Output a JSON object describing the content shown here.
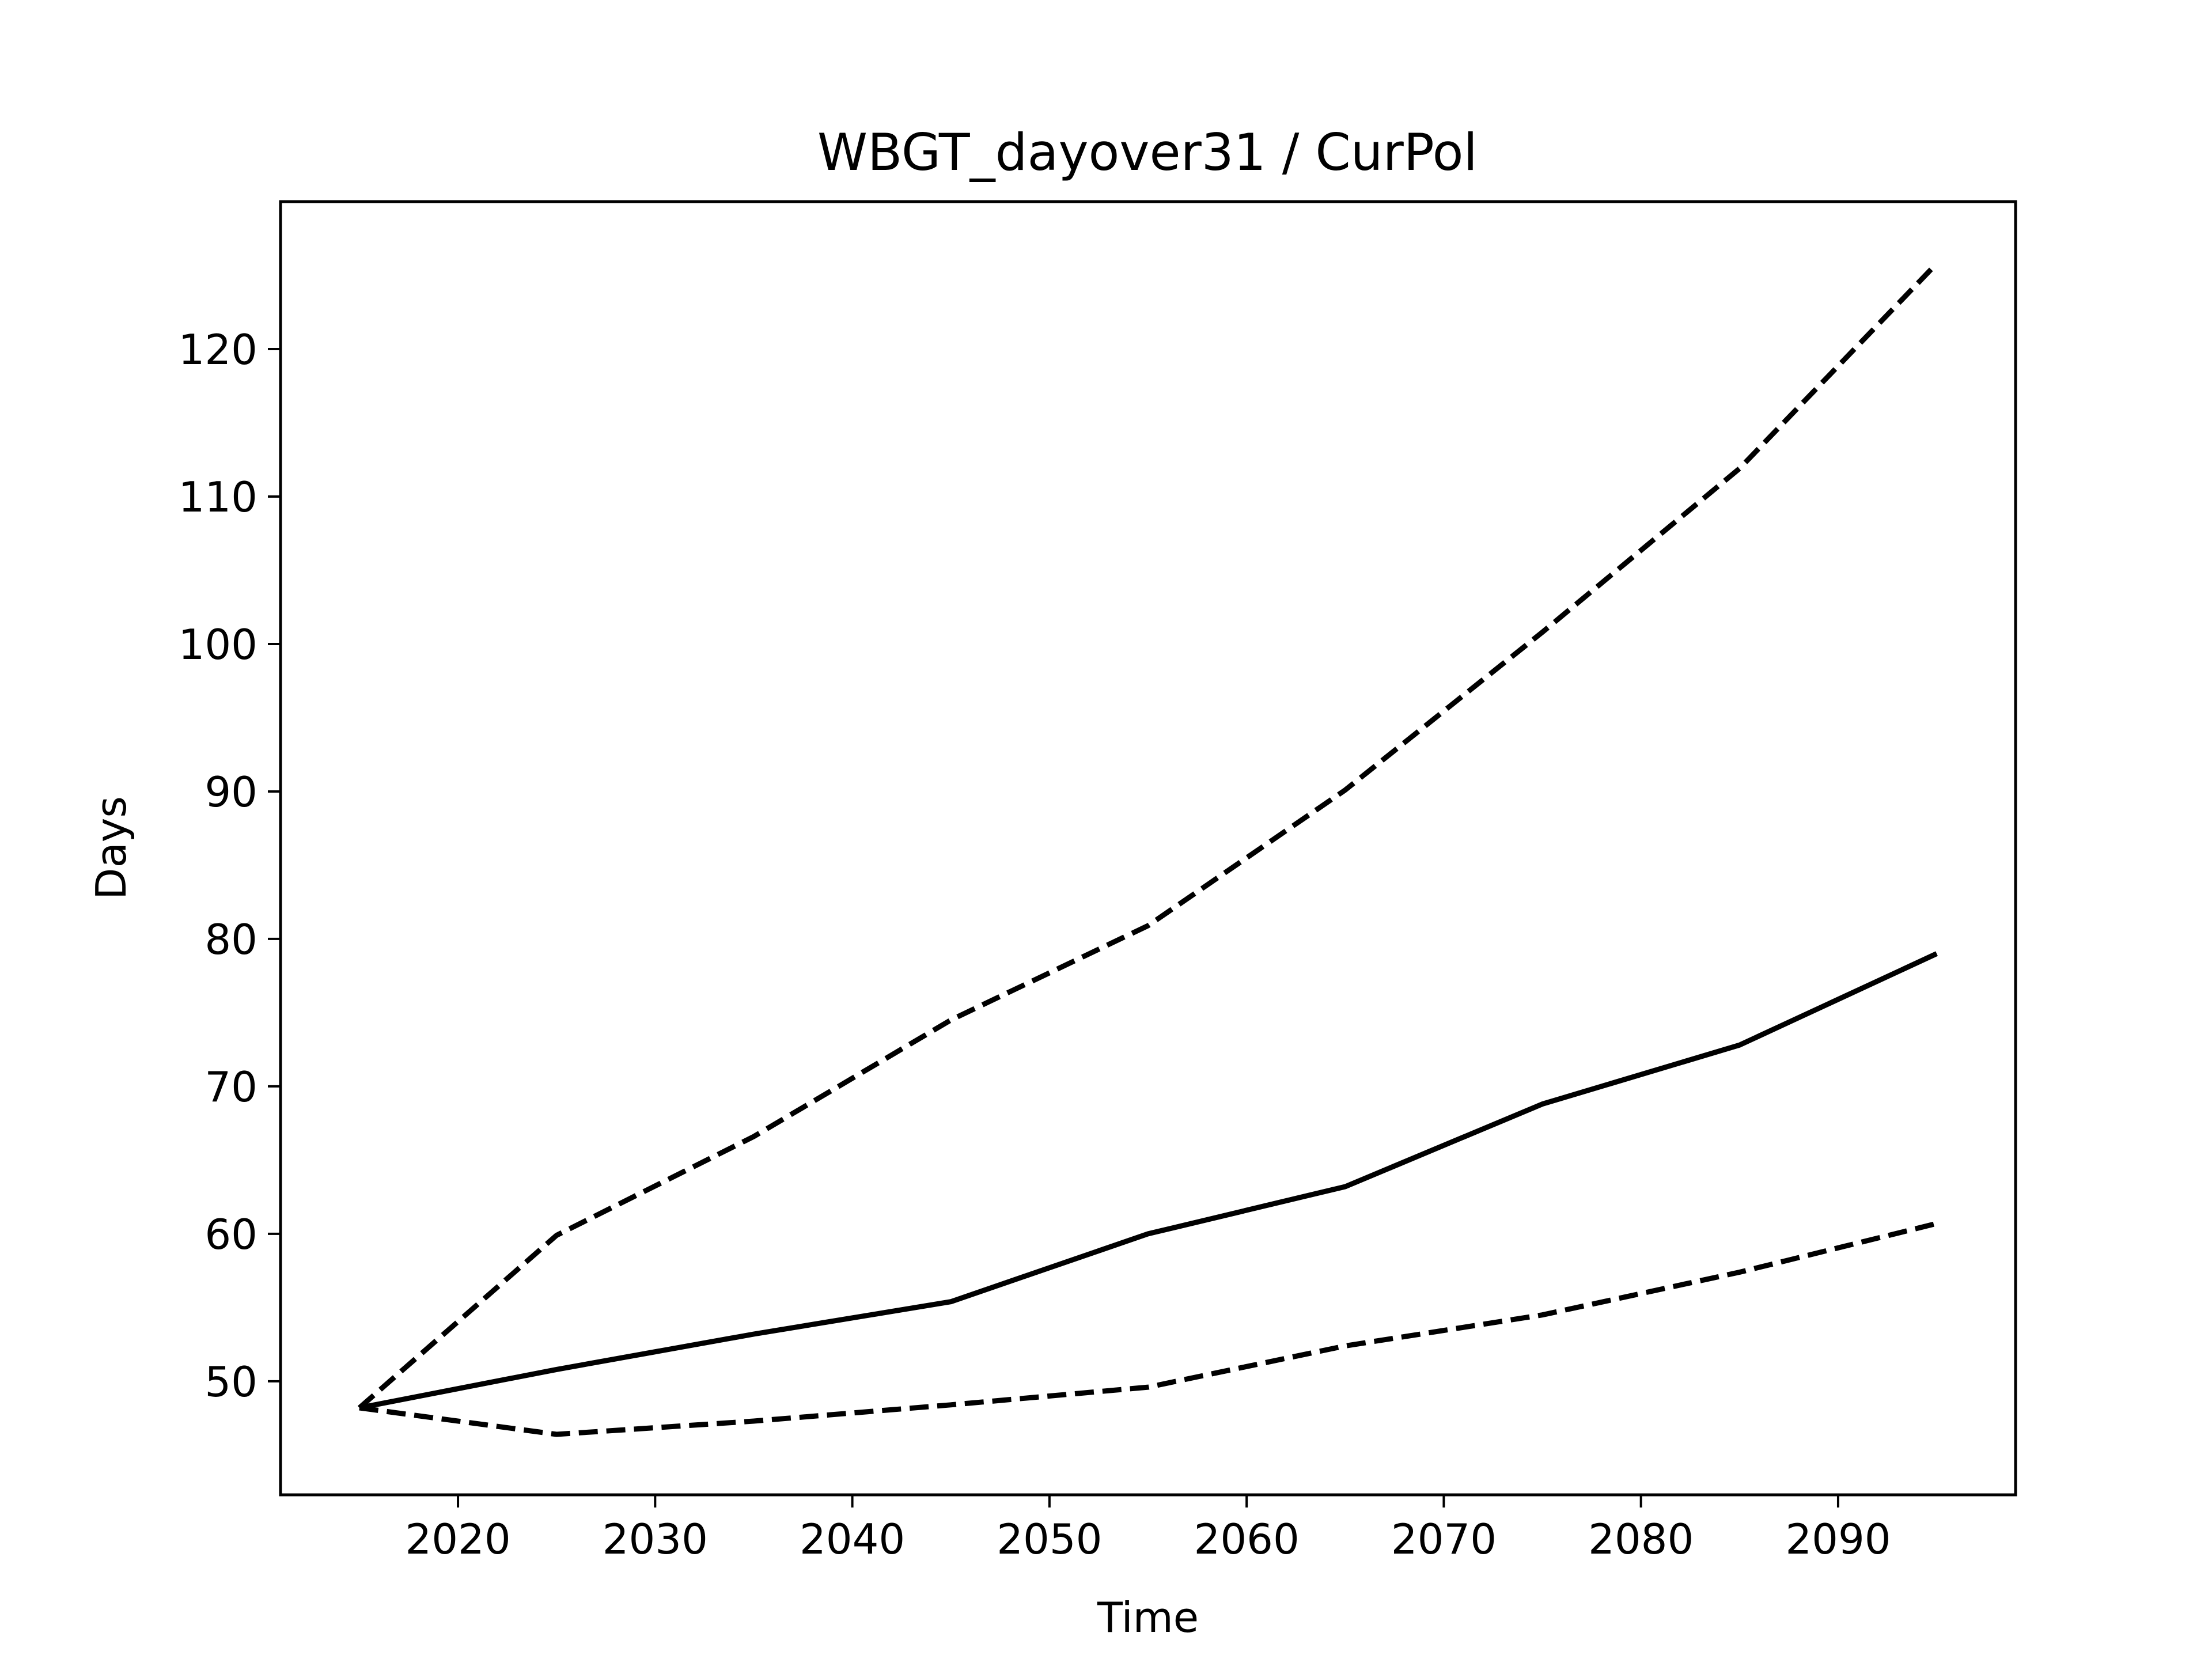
{
  "chart_data": {
    "type": "line",
    "title": "WBGT_dayover31 / CurPol",
    "xlabel": "Time",
    "ylabel": "Days",
    "xlim": [
      2011,
      2099
    ],
    "ylim": [
      42.3,
      130.0
    ],
    "xticks": [
      2020,
      2030,
      2040,
      2050,
      2060,
      2070,
      2080,
      2090
    ],
    "yticks": [
      50,
      60,
      70,
      80,
      90,
      100,
      110,
      120
    ],
    "grid": false,
    "legend": "none",
    "x": [
      2015,
      2025,
      2035,
      2045,
      2055,
      2065,
      2075,
      2085,
      2095
    ],
    "series": [
      {
        "style": "solid",
        "color": "#000000",
        "values": [
          48.2,
          50.8,
          53.2,
          55.4,
          60.0,
          63.2,
          68.8,
          72.8,
          79.0
        ]
      },
      {
        "style": "dashed",
        "color": "#000000",
        "values": [
          48.2,
          59.9,
          66.6,
          74.5,
          80.9,
          90.1,
          100.8,
          111.9,
          125.8
        ]
      },
      {
        "style": "dashed",
        "color": "#000000",
        "values": [
          48.2,
          46.4,
          47.3,
          48.4,
          49.6,
          52.4,
          54.5,
          57.4,
          60.7
        ]
      }
    ]
  }
}
